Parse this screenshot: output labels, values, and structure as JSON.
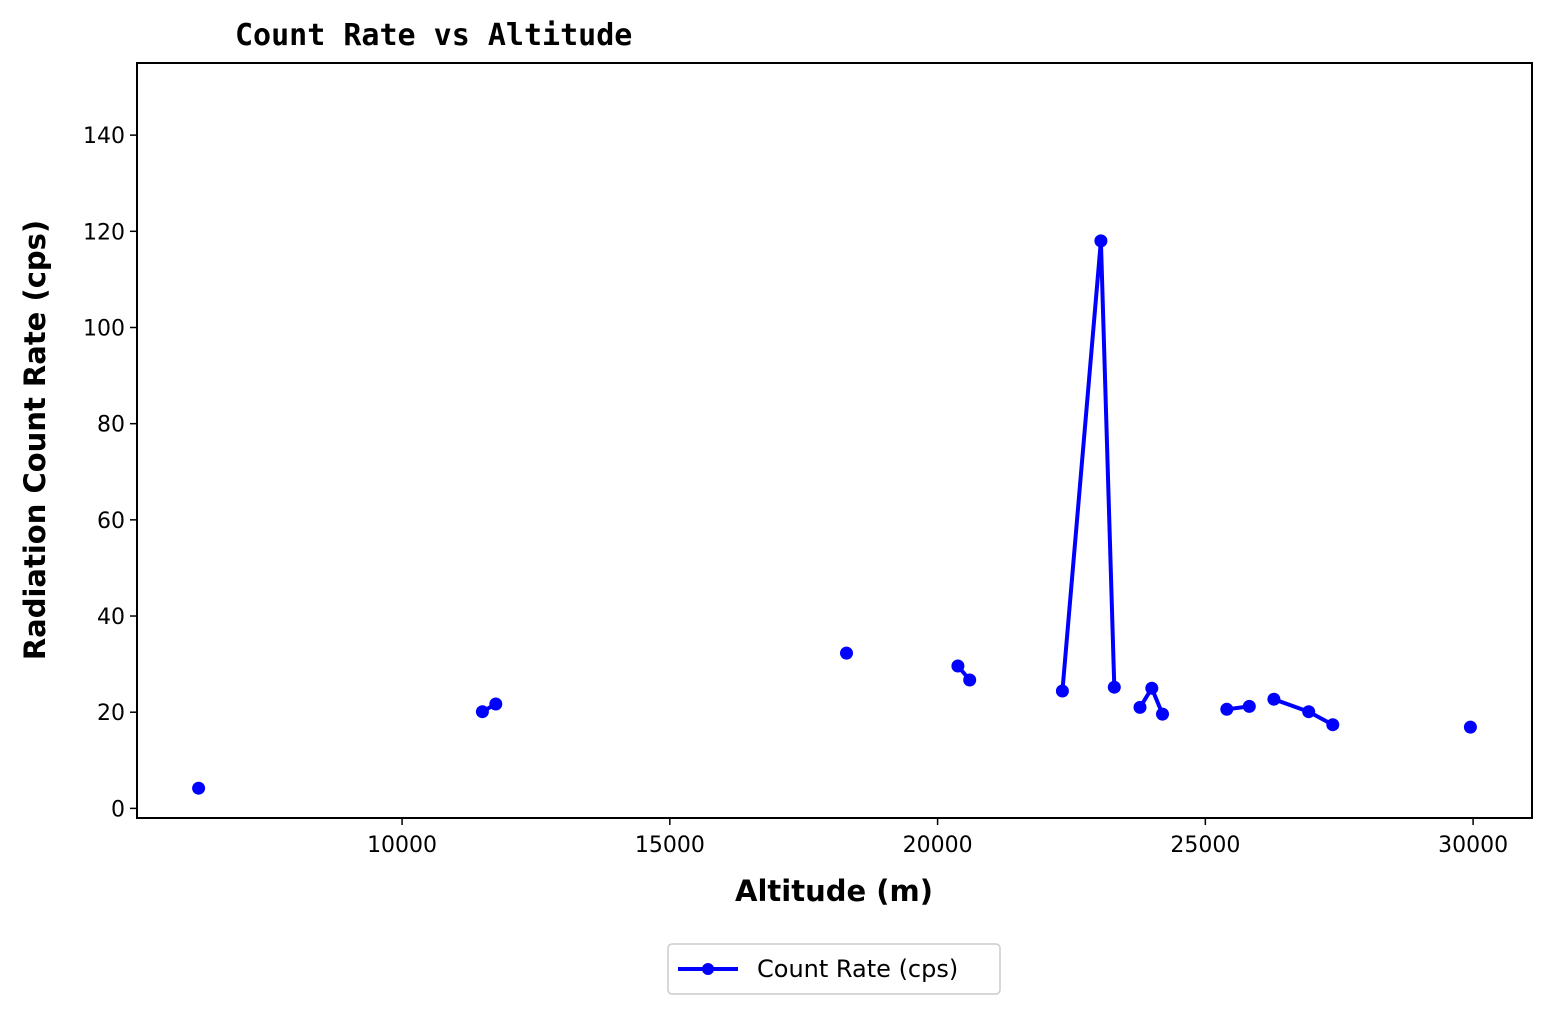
{
  "chart_data": {
    "type": "line",
    "title": "Count Rate vs Altitude",
    "xlabel": "Altitude (m)",
    "ylabel": "Radiation Count Rate (cps)",
    "xlim": [
      5050,
      31100
    ],
    "ylim": [
      -2,
      155
    ],
    "xticks": [
      10000,
      15000,
      20000,
      25000,
      30000
    ],
    "yticks": [
      0,
      20,
      40,
      60,
      80,
      100,
      120,
      140
    ],
    "grid": false,
    "legend": {
      "position": "bottom-center",
      "entries": [
        "Count Rate (cps)"
      ]
    },
    "color": "#0000ff",
    "series": [
      {
        "name": "Count Rate (cps)",
        "segments": [
          [
            [
              6200,
              4.2
            ]
          ],
          [
            [
              11500,
              20.1
            ],
            [
              11750,
              21.7
            ]
          ],
          [
            [
              18300,
              32.3
            ]
          ],
          [
            [
              20380,
              29.6
            ],
            [
              20600,
              26.7
            ]
          ],
          [
            [
              22330,
              24.4
            ],
            [
              23050,
              118.0
            ],
            [
              23300,
              25.2
            ]
          ],
          [
            [
              23780,
              21.0
            ],
            [
              24000,
              25.0
            ],
            [
              24200,
              19.6
            ]
          ],
          [
            [
              25400,
              20.6
            ],
            [
              25820,
              21.2
            ]
          ],
          [
            [
              26280,
              22.7
            ],
            [
              26930,
              20.1
            ],
            [
              27380,
              17.4
            ]
          ],
          [
            [
              29950,
              16.9
            ]
          ]
        ]
      }
    ]
  }
}
